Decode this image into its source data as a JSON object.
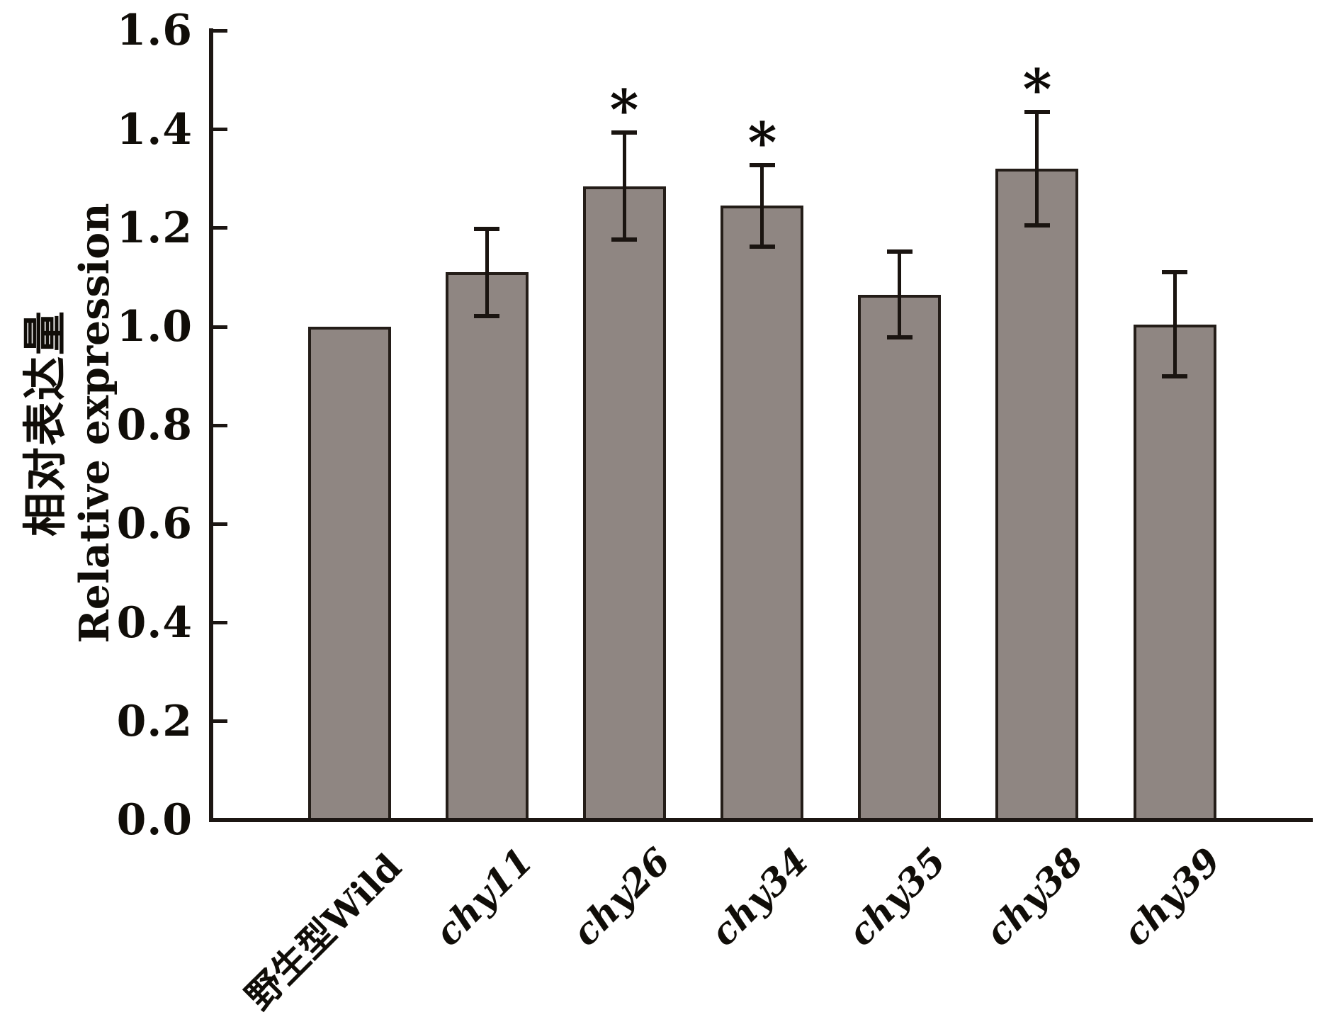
{
  "chart_data": {
    "type": "bar",
    "title": "",
    "categories": [
      "野生型Wild",
      "chy11",
      "chy26",
      "chy34",
      "chy35",
      "chy38",
      "chy39"
    ],
    "values": [
      1.0,
      1.11,
      1.285,
      1.245,
      1.065,
      1.32,
      1.005
    ],
    "errors": [
      0,
      0.088,
      0.108,
      0.083,
      0.087,
      0.115,
      0.106
    ],
    "significance": [
      "",
      "",
      "*",
      "*",
      "",
      "*",
      ""
    ],
    "label_italic": [
      false,
      true,
      true,
      true,
      true,
      true,
      true
    ],
    "ylabel_line1": "相对表达量",
    "ylabel_line2": "Relative expression",
    "xlabel": "",
    "yticks": [
      "0.0",
      "0.2",
      "0.4",
      "0.6",
      "0.8",
      "1.0",
      "1.2",
      "1.4",
      "1.6"
    ],
    "ylim": [
      0,
      1.6
    ],
    "ytick_step": 0.2,
    "grid": false,
    "legend": null,
    "bar_fill": "#8f8682",
    "bar_edge": "#241d18",
    "axis_color": "#1c1613",
    "text_color": "#100d08",
    "background": "#ffffff"
  }
}
